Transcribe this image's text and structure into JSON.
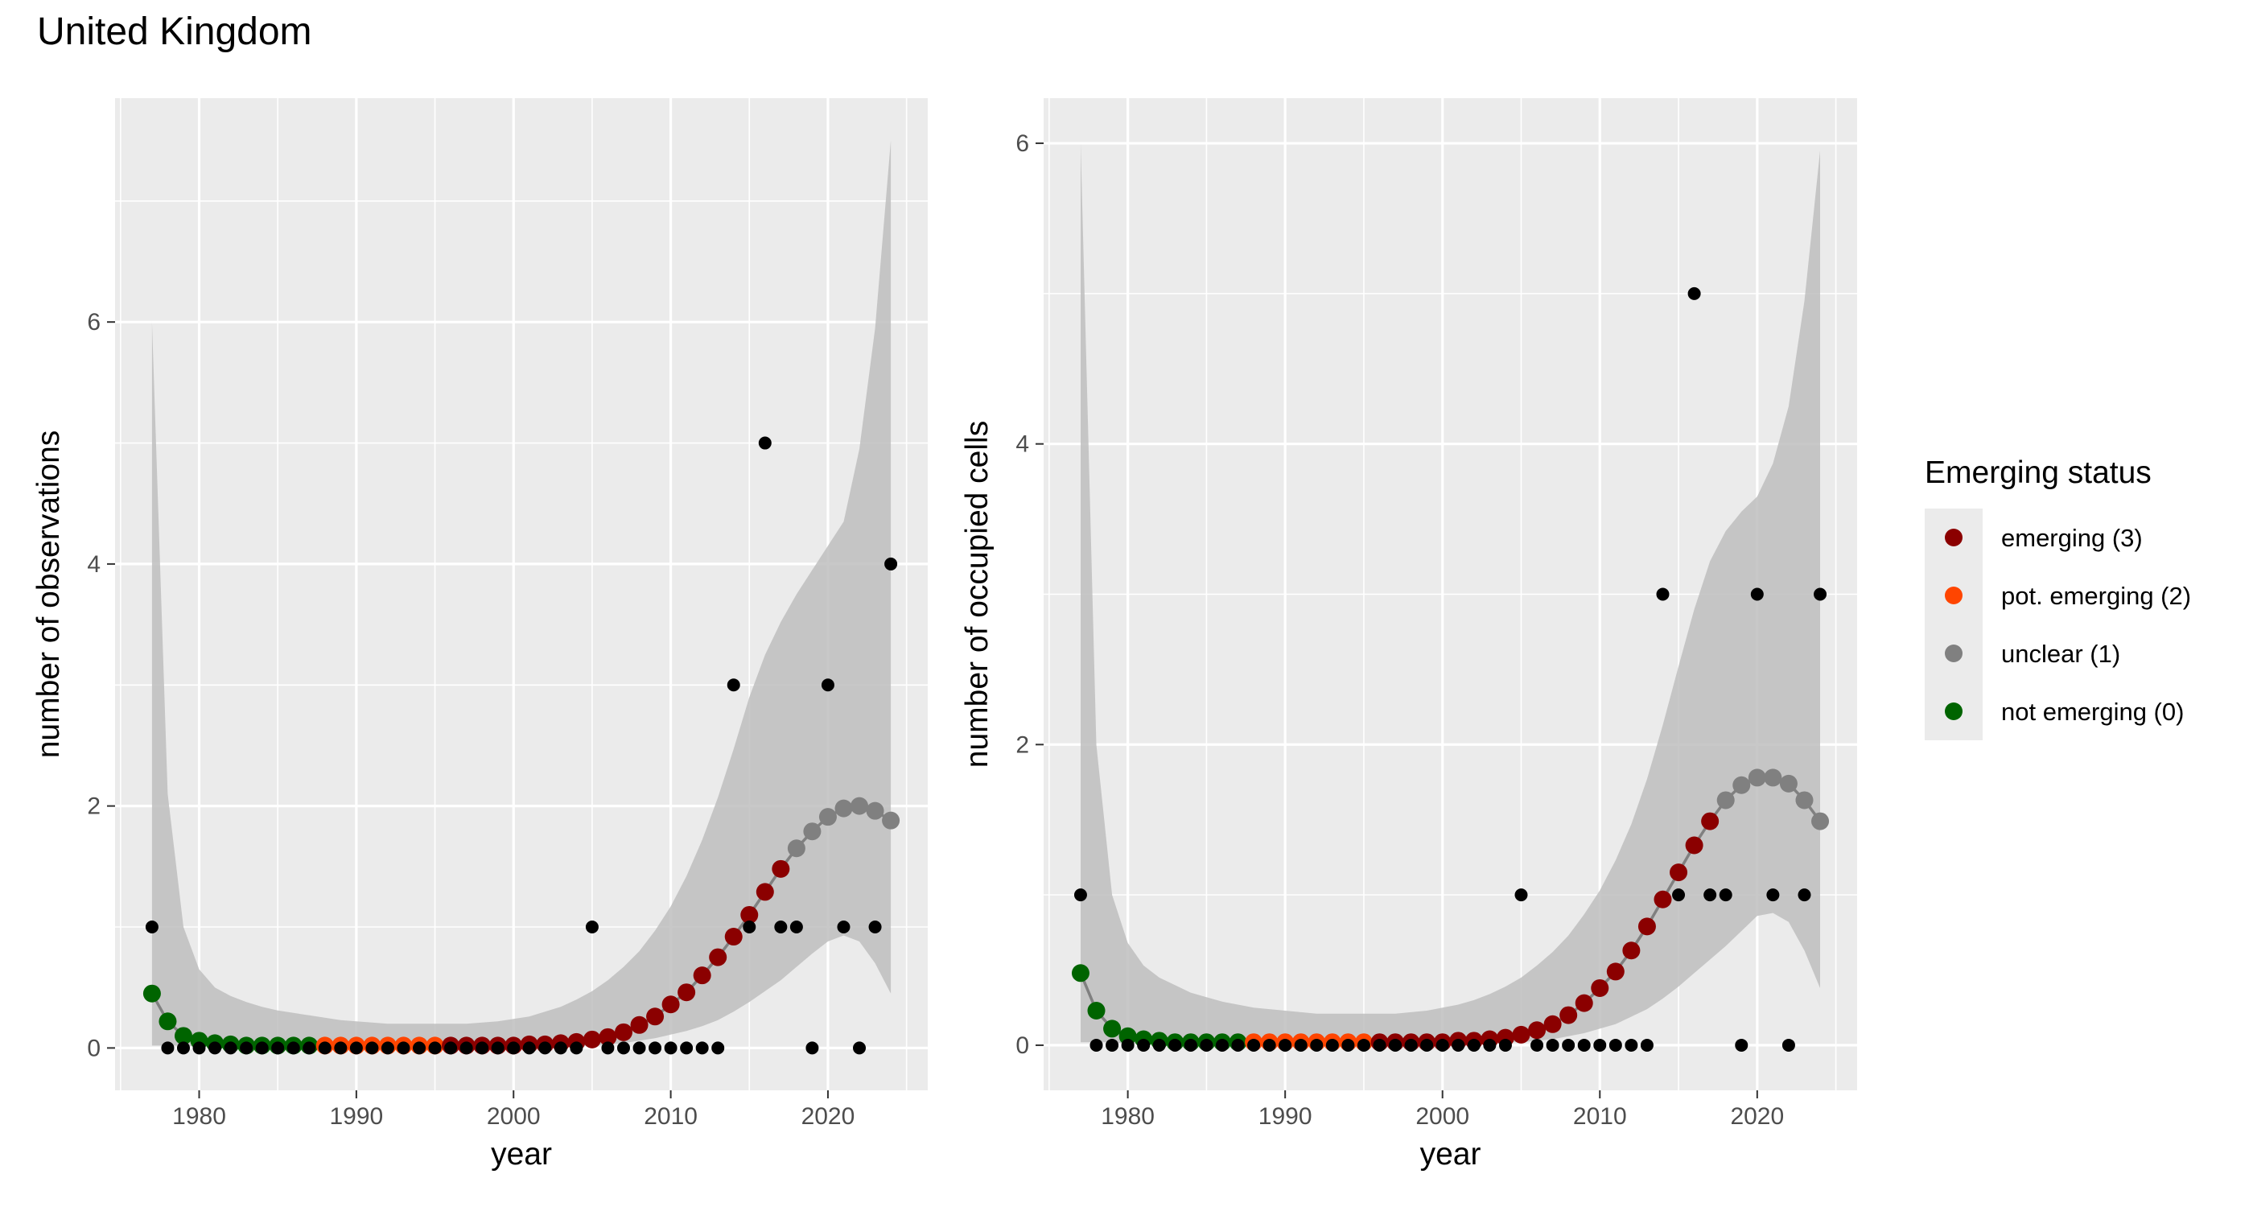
{
  "title": "United Kingdom",
  "legend": {
    "title": "Emerging status",
    "items": [
      {
        "key": "emerging",
        "label": "emerging (3)",
        "color": "#8B0000"
      },
      {
        "key": "pot",
        "label": "pot. emerging (2)",
        "color": "#FF4500"
      },
      {
        "key": "unclear",
        "label": "unclear (1)",
        "color": "#808080"
      },
      {
        "key": "not",
        "label": "not emerging (0)",
        "color": "#006400"
      }
    ]
  },
  "colors": {
    "panel": "#EBEBEB",
    "grid": "#FFFFFF",
    "ribbon": "#BEBEBE",
    "observed": "#000000"
  },
  "chart_data": [
    {
      "type": "scatter",
      "xlabel": "year",
      "ylabel": "number of observations",
      "xlim": [
        1974.65,
        2026.35
      ],
      "ylim": [
        -0.35,
        7.85
      ],
      "xticks": [
        1980,
        1990,
        2000,
        2010,
        2020
      ],
      "yticks": [
        0,
        2,
        4,
        6
      ],
      "grid": true,
      "observed": {
        "x": [
          1977,
          1978,
          1979,
          1980,
          1981,
          1982,
          1983,
          1984,
          1985,
          1986,
          1987,
          1988,
          1989,
          1990,
          1991,
          1992,
          1993,
          1994,
          1995,
          1996,
          1997,
          1998,
          1999,
          2000,
          2001,
          2002,
          2003,
          2004,
          2005,
          2006,
          2007,
          2008,
          2009,
          2010,
          2011,
          2012,
          2013,
          2014,
          2015,
          2016,
          2017,
          2018,
          2019,
          2020,
          2021,
          2022,
          2023,
          2024
        ],
        "y": [
          1,
          0,
          0,
          0,
          0,
          0,
          0,
          0,
          0,
          0,
          0,
          0,
          0,
          0,
          0,
          0,
          0,
          0,
          0,
          0,
          0,
          0,
          0,
          0,
          0,
          0,
          0,
          0,
          1,
          0,
          0,
          0,
          0,
          0,
          0,
          0,
          0,
          3,
          1,
          5,
          1,
          1,
          0,
          3,
          1,
          0,
          1,
          4
        ]
      },
      "fit": {
        "x": [
          1977,
          1978,
          1979,
          1980,
          1981,
          1982,
          1983,
          1984,
          1985,
          1986,
          1987,
          1988,
          1989,
          1990,
          1991,
          1992,
          1993,
          1994,
          1995,
          1996,
          1997,
          1998,
          1999,
          2000,
          2001,
          2002,
          2003,
          2004,
          2005,
          2006,
          2007,
          2008,
          2009,
          2010,
          2011,
          2012,
          2013,
          2014,
          2015,
          2016,
          2017,
          2018,
          2019,
          2020,
          2021,
          2022,
          2023,
          2024
        ],
        "y": [
          0.45,
          0.22,
          0.1,
          0.06,
          0.04,
          0.03,
          0.02,
          0.02,
          0.02,
          0.02,
          0.02,
          0.02,
          0.02,
          0.02,
          0.02,
          0.02,
          0.02,
          0.02,
          0.02,
          0.02,
          0.02,
          0.02,
          0.02,
          0.02,
          0.03,
          0.03,
          0.04,
          0.05,
          0.07,
          0.09,
          0.13,
          0.19,
          0.26,
          0.36,
          0.46,
          0.6,
          0.75,
          0.92,
          1.1,
          1.29,
          1.48,
          1.65,
          1.79,
          1.91,
          1.98,
          2.0,
          1.96,
          1.88
        ],
        "status": [
          "not",
          "not",
          "not",
          "not",
          "not",
          "not",
          "not",
          "not",
          "not",
          "not",
          "not",
          "pot",
          "pot",
          "pot",
          "pot",
          "pot",
          "pot",
          "pot",
          "pot",
          "emerging",
          "emerging",
          "emerging",
          "emerging",
          "emerging",
          "emerging",
          "emerging",
          "emerging",
          "emerging",
          "emerging",
          "emerging",
          "emerging",
          "emerging",
          "emerging",
          "emerging",
          "emerging",
          "emerging",
          "emerging",
          "emerging",
          "emerging",
          "emerging",
          "emerging",
          "unclear",
          "unclear",
          "unclear",
          "unclear",
          "unclear",
          "unclear",
          "unclear"
        ],
        "lower": [
          0.02,
          0.02,
          0.02,
          0.01,
          0.01,
          0.01,
          0.01,
          0.01,
          0.01,
          0.01,
          0.01,
          0.01,
          0.01,
          0.01,
          0.01,
          0.01,
          0.01,
          0.01,
          0.01,
          0.01,
          0.01,
          0.01,
          0.01,
          0.01,
          0.01,
          0.01,
          0.01,
          0.02,
          0.02,
          0.03,
          0.04,
          0.06,
          0.08,
          0.11,
          0.14,
          0.18,
          0.23,
          0.3,
          0.38,
          0.47,
          0.56,
          0.67,
          0.78,
          0.88,
          0.93,
          0.88,
          0.7,
          0.45
        ],
        "upper": [
          6.0,
          2.1,
          1.0,
          0.65,
          0.5,
          0.43,
          0.38,
          0.34,
          0.31,
          0.29,
          0.27,
          0.25,
          0.23,
          0.22,
          0.21,
          0.2,
          0.2,
          0.2,
          0.2,
          0.2,
          0.2,
          0.21,
          0.22,
          0.24,
          0.26,
          0.3,
          0.34,
          0.4,
          0.47,
          0.56,
          0.67,
          0.8,
          0.97,
          1.17,
          1.42,
          1.72,
          2.07,
          2.47,
          2.9,
          3.25,
          3.52,
          3.75,
          3.95,
          4.15,
          4.35,
          4.95,
          5.95,
          7.5
        ]
      }
    },
    {
      "type": "scatter",
      "xlabel": "year",
      "ylabel": "number of occupied cells",
      "xlim": [
        1974.65,
        2026.35
      ],
      "ylim": [
        -0.3,
        6.3
      ],
      "xticks": [
        1980,
        1990,
        2000,
        2010,
        2020
      ],
      "yticks": [
        0,
        2,
        4,
        6
      ],
      "grid": true,
      "observed": {
        "x": [
          1977,
          1978,
          1979,
          1980,
          1981,
          1982,
          1983,
          1984,
          1985,
          1986,
          1987,
          1988,
          1989,
          1990,
          1991,
          1992,
          1993,
          1994,
          1995,
          1996,
          1997,
          1998,
          1999,
          2000,
          2001,
          2002,
          2003,
          2004,
          2005,
          2006,
          2007,
          2008,
          2009,
          2010,
          2011,
          2012,
          2013,
          2014,
          2015,
          2016,
          2017,
          2018,
          2019,
          2020,
          2021,
          2022,
          2023,
          2024
        ],
        "y": [
          1,
          0,
          0,
          0,
          0,
          0,
          0,
          0,
          0,
          0,
          0,
          0,
          0,
          0,
          0,
          0,
          0,
          0,
          0,
          0,
          0,
          0,
          0,
          0,
          0,
          0,
          0,
          0,
          1,
          0,
          0,
          0,
          0,
          0,
          0,
          0,
          0,
          3,
          1,
          5,
          1,
          1,
          0,
          3,
          1,
          0,
          1,
          3
        ]
      },
      "fit": {
        "x": [
          1977,
          1978,
          1979,
          1980,
          1981,
          1982,
          1983,
          1984,
          1985,
          1986,
          1987,
          1988,
          1989,
          1990,
          1991,
          1992,
          1993,
          1994,
          1995,
          1996,
          1997,
          1998,
          1999,
          2000,
          2001,
          2002,
          2003,
          2004,
          2005,
          2006,
          2007,
          2008,
          2009,
          2010,
          2011,
          2012,
          2013,
          2014,
          2015,
          2016,
          2017,
          2018,
          2019,
          2020,
          2021,
          2022,
          2023,
          2024
        ],
        "y": [
          0.48,
          0.23,
          0.11,
          0.06,
          0.04,
          0.03,
          0.02,
          0.02,
          0.02,
          0.02,
          0.02,
          0.02,
          0.02,
          0.02,
          0.02,
          0.02,
          0.02,
          0.02,
          0.02,
          0.02,
          0.02,
          0.02,
          0.02,
          0.02,
          0.03,
          0.03,
          0.04,
          0.05,
          0.07,
          0.1,
          0.14,
          0.2,
          0.28,
          0.38,
          0.49,
          0.63,
          0.79,
          0.97,
          1.15,
          1.33,
          1.49,
          1.63,
          1.73,
          1.78,
          1.78,
          1.74,
          1.63,
          1.49
        ],
        "status": [
          "not",
          "not",
          "not",
          "not",
          "not",
          "not",
          "not",
          "not",
          "not",
          "not",
          "not",
          "pot",
          "pot",
          "pot",
          "pot",
          "pot",
          "pot",
          "pot",
          "pot",
          "emerging",
          "emerging",
          "emerging",
          "emerging",
          "emerging",
          "emerging",
          "emerging",
          "emerging",
          "emerging",
          "emerging",
          "emerging",
          "emerging",
          "emerging",
          "emerging",
          "emerging",
          "emerging",
          "emerging",
          "emerging",
          "emerging",
          "emerging",
          "emerging",
          "emerging",
          "unclear",
          "unclear",
          "unclear",
          "unclear",
          "unclear",
          "unclear",
          "unclear"
        ],
        "lower": [
          0.02,
          0.02,
          0.02,
          0.01,
          0.01,
          0.01,
          0.01,
          0.01,
          0.01,
          0.01,
          0.01,
          0.01,
          0.01,
          0.01,
          0.01,
          0.01,
          0.01,
          0.01,
          0.01,
          0.01,
          0.01,
          0.01,
          0.01,
          0.01,
          0.01,
          0.01,
          0.01,
          0.02,
          0.02,
          0.03,
          0.04,
          0.06,
          0.08,
          0.11,
          0.14,
          0.19,
          0.24,
          0.31,
          0.39,
          0.48,
          0.57,
          0.66,
          0.76,
          0.86,
          0.88,
          0.82,
          0.63,
          0.38
        ],
        "upper": [
          6.0,
          2.0,
          1.0,
          0.68,
          0.53,
          0.45,
          0.4,
          0.35,
          0.32,
          0.29,
          0.27,
          0.25,
          0.24,
          0.23,
          0.22,
          0.21,
          0.21,
          0.21,
          0.21,
          0.21,
          0.21,
          0.22,
          0.23,
          0.25,
          0.27,
          0.3,
          0.34,
          0.39,
          0.45,
          0.53,
          0.62,
          0.73,
          0.87,
          1.03,
          1.23,
          1.47,
          1.77,
          2.13,
          2.52,
          2.9,
          3.22,
          3.42,
          3.55,
          3.65,
          3.87,
          4.25,
          4.95,
          5.95
        ]
      }
    }
  ]
}
